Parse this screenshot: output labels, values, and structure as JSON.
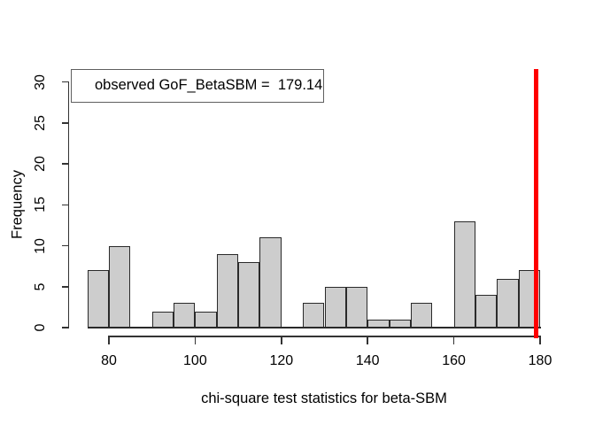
{
  "figure": {
    "ylabel": "Frequency",
    "xlabel": "chi-square test statistics for beta-SBM",
    "legend_text": "observed GoF_BetaSBM =  179.14"
  },
  "chart_data": {
    "type": "bar",
    "subtype": "histogram",
    "title": "",
    "xlabel": "chi-square test statistics for beta-SBM",
    "ylabel": "Frequency",
    "bin_start": 75,
    "bin_width": 5,
    "counts": [
      7,
      10,
      0,
      2,
      3,
      2,
      9,
      8,
      11,
      0,
      3,
      5,
      5,
      1,
      1,
      3,
      0,
      13,
      4,
      6,
      7
    ],
    "x_ticks": [
      80,
      100,
      120,
      140,
      160,
      180
    ],
    "y_ticks": [
      0,
      5,
      10,
      15,
      20,
      25,
      30
    ],
    "xlim": [
      75,
      180
    ],
    "ylim": [
      0,
      31
    ],
    "grid": false,
    "legend_position": "top-left",
    "legend_text": "observed GoF_BetaSBM =  179.14",
    "observed_value": 179.14,
    "vline": {
      "x": 179.14,
      "color": "#FF0000"
    },
    "colors": {
      "bar_fill": "#CDCDCD",
      "bar_border": "#2A2A2A",
      "axis": "#333333",
      "vline": "#FF0000"
    }
  }
}
